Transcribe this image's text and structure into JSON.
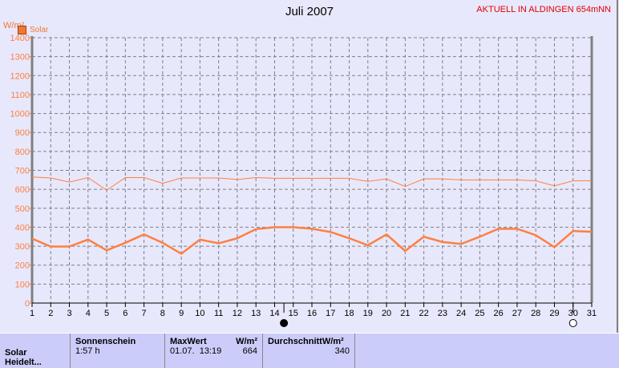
{
  "header": {
    "title": "Juli 2007",
    "location": "AKTUELL IN ALDINGEN 654mNN"
  },
  "colors": {
    "series": "#ff7f3f",
    "grid": "#808080",
    "background": "#e8e8fc"
  },
  "chart_data": {
    "type": "line",
    "title": "Juli 2007",
    "ylabel": "W/m²",
    "ylim": [
      0,
      1400
    ],
    "grid": true,
    "legend_placement": "top-left",
    "x": [
      1,
      2,
      3,
      4,
      5,
      6,
      7,
      8,
      9,
      10,
      11,
      12,
      13,
      14,
      15,
      16,
      17,
      18,
      19,
      20,
      21,
      22,
      23,
      24,
      25,
      26,
      27,
      28,
      29,
      30,
      31
    ],
    "yticks": [
      0,
      100,
      200,
      300,
      400,
      500,
      600,
      700,
      800,
      900,
      1000,
      1100,
      1200,
      1300,
      1400
    ],
    "legend": [
      "Solar"
    ],
    "series": [
      {
        "name": "Solar",
        "kind": "max",
        "values": [
          665,
          660,
          638,
          662,
          595,
          662,
          662,
          632,
          660,
          660,
          660,
          652,
          662,
          658,
          658,
          658,
          658,
          658,
          642,
          655,
          615,
          655,
          655,
          650,
          650,
          650,
          650,
          645,
          618,
          645,
          645
        ]
      },
      {
        "name": "Solar",
        "kind": "average",
        "values": [
          340,
          298,
          298,
          335,
          278,
          318,
          362,
          318,
          260,
          335,
          315,
          342,
          390,
          400,
          400,
          392,
          375,
          342,
          305,
          362,
          275,
          350,
          322,
          312,
          350,
          392,
          392,
          358,
          295,
          380,
          376
        ]
      }
    ],
    "markers": [
      {
        "x": 14.5,
        "symbol": "filled-circle"
      },
      {
        "x": 30,
        "symbol": "open-circle"
      }
    ]
  },
  "table": {
    "row_label": "Solar",
    "row_label2": "Heidelt...",
    "sun_header": "Sonnenschein",
    "sun_value": "1:57 h",
    "max_header": "MaxWert",
    "max_unit": "W/m²",
    "max_date": "01.07.  13:19",
    "max_value": "664",
    "avg_header": "DurchschnittW/m²",
    "avg_value": "340"
  }
}
